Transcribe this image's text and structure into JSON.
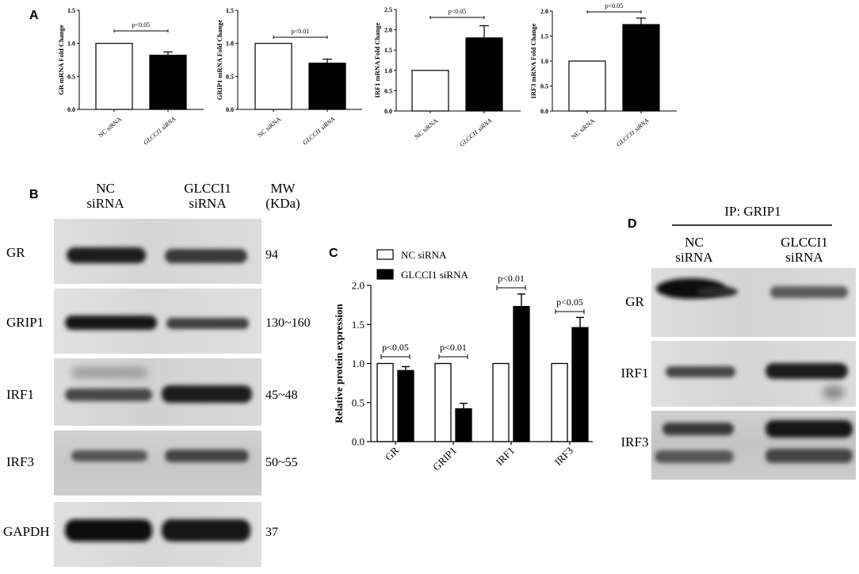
{
  "panel_labels": {
    "a": "A",
    "b": "B",
    "c": "C",
    "d": "D"
  },
  "chart_data": [
    {
      "type": "bar",
      "categories": [
        "NC siRNA",
        "GLCCI1 siRNA"
      ],
      "values": [
        1.0,
        0.82
      ],
      "error_bars": [
        0,
        0.05
      ],
      "colors": [
        "#ffffff",
        "#000000"
      ],
      "xlabel": "",
      "ylabel": "GR mRNA Fold Change",
      "ylim": [
        0,
        1.5
      ],
      "yticks": [
        "0.0",
        "0.5",
        "1.0",
        "1.5"
      ],
      "significance": [
        {
          "between": [
            0,
            1
          ],
          "label": "p<0.05"
        }
      ]
    },
    {
      "type": "bar",
      "categories": [
        "NC siRNA",
        "GLCCI1 siRNA"
      ],
      "values": [
        1.0,
        0.7
      ],
      "error_bars": [
        0,
        0.06
      ],
      "colors": [
        "#ffffff",
        "#000000"
      ],
      "xlabel": "",
      "ylabel": "GRIP1 mRNA Fold Change",
      "ylim": [
        0,
        1.5
      ],
      "yticks": [
        "0.0",
        "0.5",
        "1.0",
        "1.5"
      ],
      "significance": [
        {
          "between": [
            0,
            1
          ],
          "label": "p<0.01"
        }
      ]
    },
    {
      "type": "bar",
      "categories": [
        "NC siRNA",
        "GLCCI1 siRNA"
      ],
      "values": [
        1.0,
        1.8
      ],
      "error_bars": [
        0,
        0.3
      ],
      "colors": [
        "#ffffff",
        "#000000"
      ],
      "xlabel": "",
      "ylabel": "IRF1 mRNA Fold Change",
      "ylim": [
        0,
        2.5
      ],
      "yticks": [
        "0.0",
        "0.5",
        "1.0",
        "1.5",
        "2.0",
        "2.5"
      ],
      "significance": [
        {
          "between": [
            0,
            1
          ],
          "label": "p<0.05"
        }
      ]
    },
    {
      "type": "bar",
      "categories": [
        "NC siRNA",
        "GLCCI1 siRNA"
      ],
      "values": [
        1.0,
        1.73
      ],
      "error_bars": [
        0,
        0.13
      ],
      "colors": [
        "#ffffff",
        "#000000"
      ],
      "xlabel": "",
      "ylabel": "IRF3 mRNA Fold Change",
      "ylim": [
        0,
        2.0
      ],
      "yticks": [
        "0.0",
        "0.5",
        "1.0",
        "1.5",
        "2.0"
      ],
      "significance": [
        {
          "between": [
            0,
            1
          ],
          "label": "p<0.05"
        }
      ]
    },
    {
      "type": "bar",
      "categories": [
        "GR",
        "GRIP1",
        "IRF1",
        "IRF3"
      ],
      "series": [
        {
          "name": "NC siRNA",
          "values": [
            1.0,
            1.0,
            1.0,
            1.0
          ],
          "error_bars": [
            0,
            0,
            0,
            0
          ],
          "color": "#ffffff"
        },
        {
          "name": "GLCCI1 siRNA",
          "values": [
            0.91,
            0.42,
            1.73,
            1.46
          ],
          "error_bars": [
            0.05,
            0.07,
            0.16,
            0.13
          ],
          "color": "#000000"
        }
      ],
      "xlabel": "",
      "ylabel": "Relative protein expression",
      "ylim": [
        0,
        2.0
      ],
      "yticks": [
        "0.0",
        "0.5",
        "1.0",
        "1.5",
        "2.0"
      ],
      "legend": "top-left",
      "significance": [
        {
          "category": 0,
          "label": "p<0.05"
        },
        {
          "category": 1,
          "label": "p<0.01"
        },
        {
          "category": 2,
          "label": "p<0.01"
        },
        {
          "category": 3,
          "label": "p<0.05"
        }
      ]
    }
  ],
  "blot_b": {
    "lanes": [
      {
        "lines": [
          "NC",
          "siRNA"
        ]
      },
      {
        "lines": [
          "GLCCI1",
          "siRNA"
        ]
      }
    ],
    "mw_header": [
      "MW",
      "(KDa)"
    ],
    "rows": [
      {
        "label": "GR",
        "mw": "94"
      },
      {
        "label": "GRIP1",
        "mw": "130~160"
      },
      {
        "label": "IRF1",
        "mw": "45~48"
      },
      {
        "label": "IRF3",
        "mw": "50~55"
      },
      {
        "label": "GAPDH",
        "mw": "37"
      }
    ]
  },
  "blot_d": {
    "header": "IP: GRIP1",
    "lanes": [
      {
        "lines": [
          "NC",
          "siRNA"
        ]
      },
      {
        "lines": [
          "GLCCI1",
          "siRNA"
        ]
      }
    ],
    "rows": [
      {
        "label": "GR"
      },
      {
        "label": "IRF1"
      },
      {
        "label": "IRF3"
      }
    ]
  }
}
